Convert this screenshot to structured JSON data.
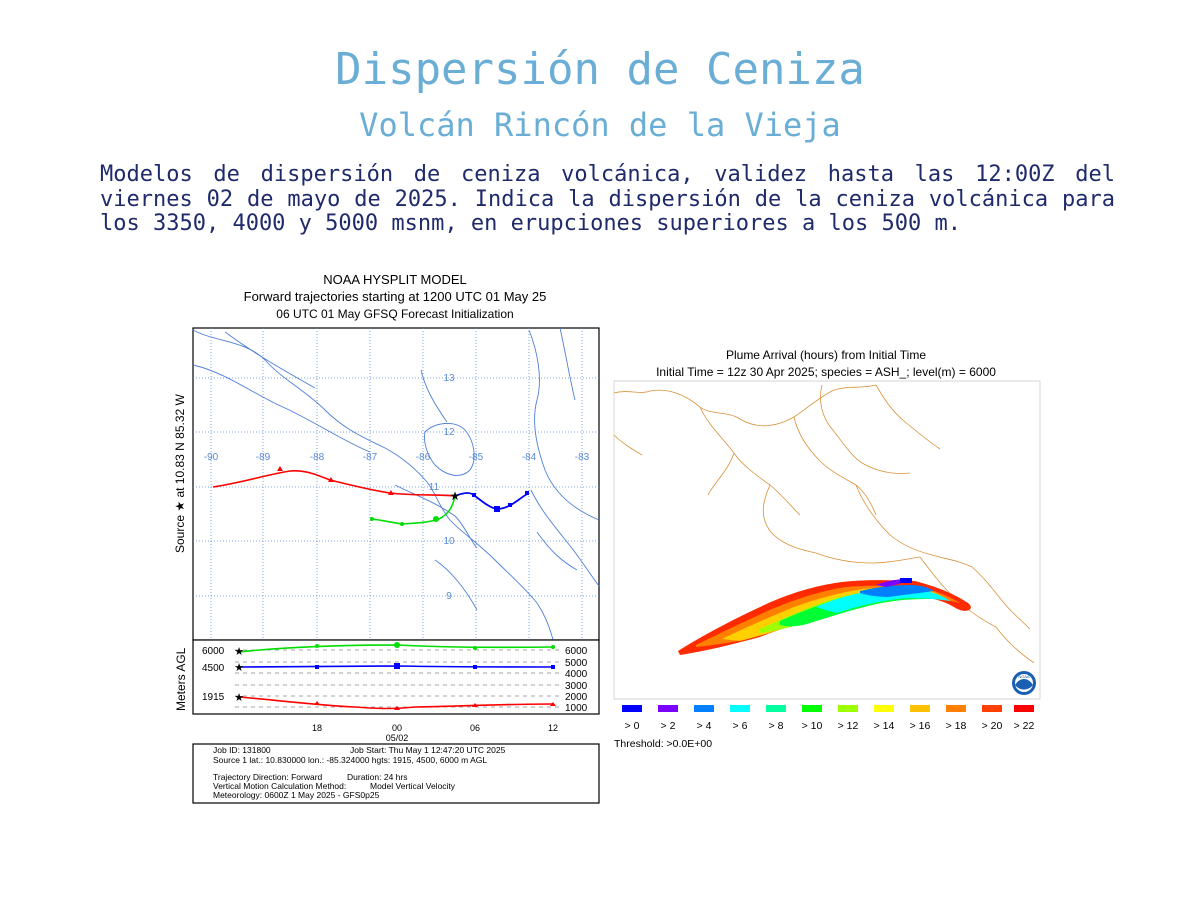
{
  "header": {
    "title": "Dispersión de Ceniza",
    "subtitle": "Volcán Rincón de la Vieja",
    "description": "Modelos de dispersión de ceniza volcánica, validez hasta las 12:00Z del viernes 02 de mayo de 2025. Indica la dispersión de la ceniza volcánica para los 3350, 4000 y 5000 msnm, en erupciones superiores a los 500 m."
  },
  "hysplit": {
    "title_line1": "NOAA HYSPLIT MODEL",
    "title_line2": "Forward trajectories starting at 1200 UTC 01 May 25",
    "title_line3": "06 UTC 01 May    GFSQ  Forecast Initialization",
    "source_label": "Source ★  at   10.83 N   85.32 W",
    "lon_labels": [
      "-90",
      "-89",
      "-88",
      "-87",
      "-86",
      "-85",
      "-84",
      "-83"
    ],
    "lat_labels": [
      "13",
      "12",
      "11",
      "10",
      "9"
    ],
    "agl_label": "Meters AGL",
    "left_heights": [
      "6000",
      "4500",
      "1915"
    ],
    "right_heights": [
      "6000",
      "5000",
      "4000",
      "3000",
      "2000",
      "1000"
    ],
    "time_ticks": [
      "18",
      "00",
      "06",
      "12"
    ],
    "date_label": "05/02",
    "info_line1a": "Job ID: 131800",
    "info_line1b": "Job Start: Thu May  1 12:47:20 UTC 2025",
    "info_line2": "Source 1 lat.: 10.830000  lon.: -85.324000  hgts: 1915, 4500, 6000 m AGL",
    "info_line3a": "Trajectory Direction: Forward",
    "info_line3b": "Duration: 24 hrs",
    "info_line4a": "Vertical Motion Calculation Method:",
    "info_line4b": "Model Vertical Velocity",
    "info_line5": "Meteorology: 0600Z 1 May 2025 - GFS0p25",
    "colors": {
      "red": "#ff0000",
      "blue": "#0000ff",
      "green": "#00dd00",
      "grid": "#4f7fd6"
    }
  },
  "plume": {
    "title_line1": "Plume Arrival (hours) from Initial Time",
    "title_line2": "Initial Time = 12z 30 Apr 2025;  species = ASH_;  level(m) =  6000",
    "legend": [
      {
        "label": "> 0",
        "color": "#0000ff"
      },
      {
        "label": "> 2",
        "color": "#7a00ff"
      },
      {
        "label": "> 4",
        "color": "#0080ff"
      },
      {
        "label": "> 6",
        "color": "#00ffff"
      },
      {
        "label": "> 8",
        "color": "#00ff9f"
      },
      {
        "label": "> 10",
        "color": "#00ff00"
      },
      {
        "label": "> 12",
        "color": "#9fff00"
      },
      {
        "label": "> 14",
        "color": "#ffff00"
      },
      {
        "label": "> 16",
        "color": "#ffc000"
      },
      {
        "label": "> 18",
        "color": "#ff8000"
      },
      {
        "label": "> 20",
        "color": "#ff4000"
      },
      {
        "label": "> 22",
        "color": "#ff0000"
      }
    ],
    "threshold": "Threshold: >0.0E+00",
    "border_color": "#d9913a",
    "logo": "noaa-logo"
  }
}
